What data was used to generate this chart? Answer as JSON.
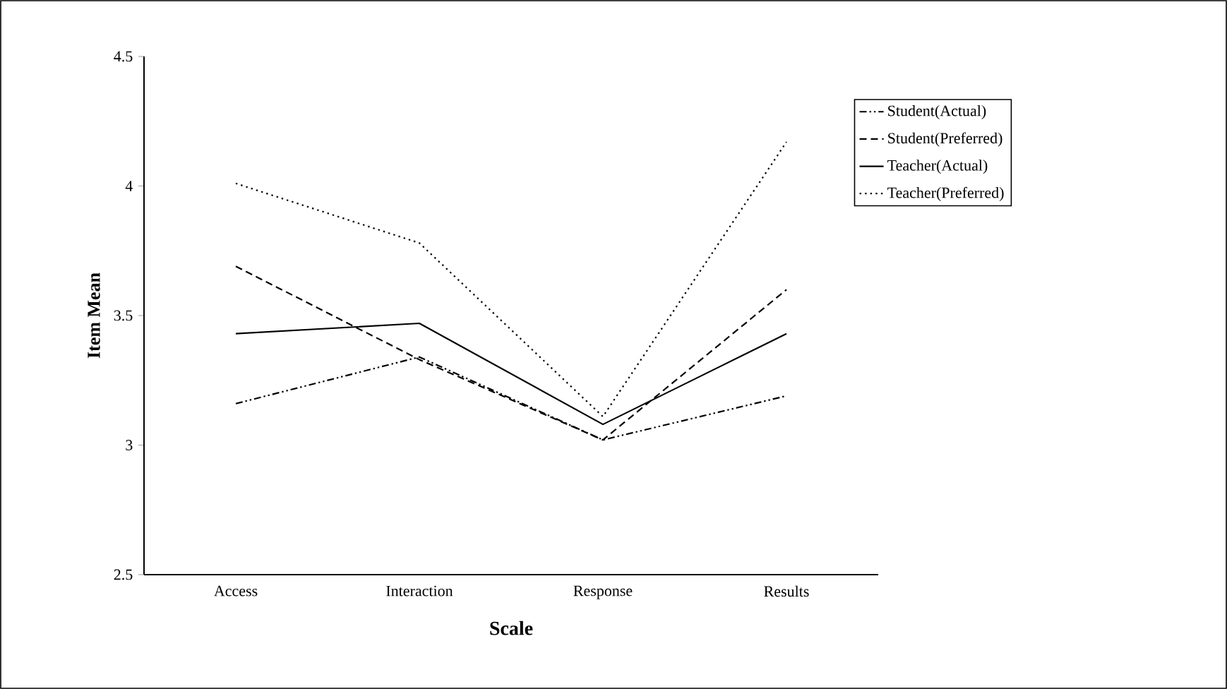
{
  "chart_data": {
    "type": "line",
    "xlabel": "Scale",
    "ylabel": "Item Mean",
    "categories": [
      "Access",
      "Interaction",
      "Response",
      "Results"
    ],
    "series": [
      {
        "name": "Student(Actual)",
        "color": "#000000",
        "line_style": "dashdotdotted",
        "values": [
          3.16,
          3.34,
          3.02,
          3.19
        ]
      },
      {
        "name": "Student(Preferred)",
        "color": "#000000",
        "line_style": "dashed",
        "values": [
          3.69,
          3.33,
          3.02,
          3.6
        ]
      },
      {
        "name": "Teacher(Actual)",
        "color": "#000000",
        "line_style": "solid",
        "values": [
          3.43,
          3.47,
          3.08,
          3.43
        ]
      },
      {
        "name": "Teacher(Preferred)",
        "color": "#000000",
        "line_style": "dotted",
        "values": [
          4.01,
          3.78,
          3.11,
          4.17
        ]
      }
    ],
    "ylim": [
      2.5,
      4.5
    ],
    "yticks": [
      2.5,
      3,
      3.5,
      4,
      4.5
    ],
    "grid": false,
    "legend": "right",
    "marker": "none"
  }
}
